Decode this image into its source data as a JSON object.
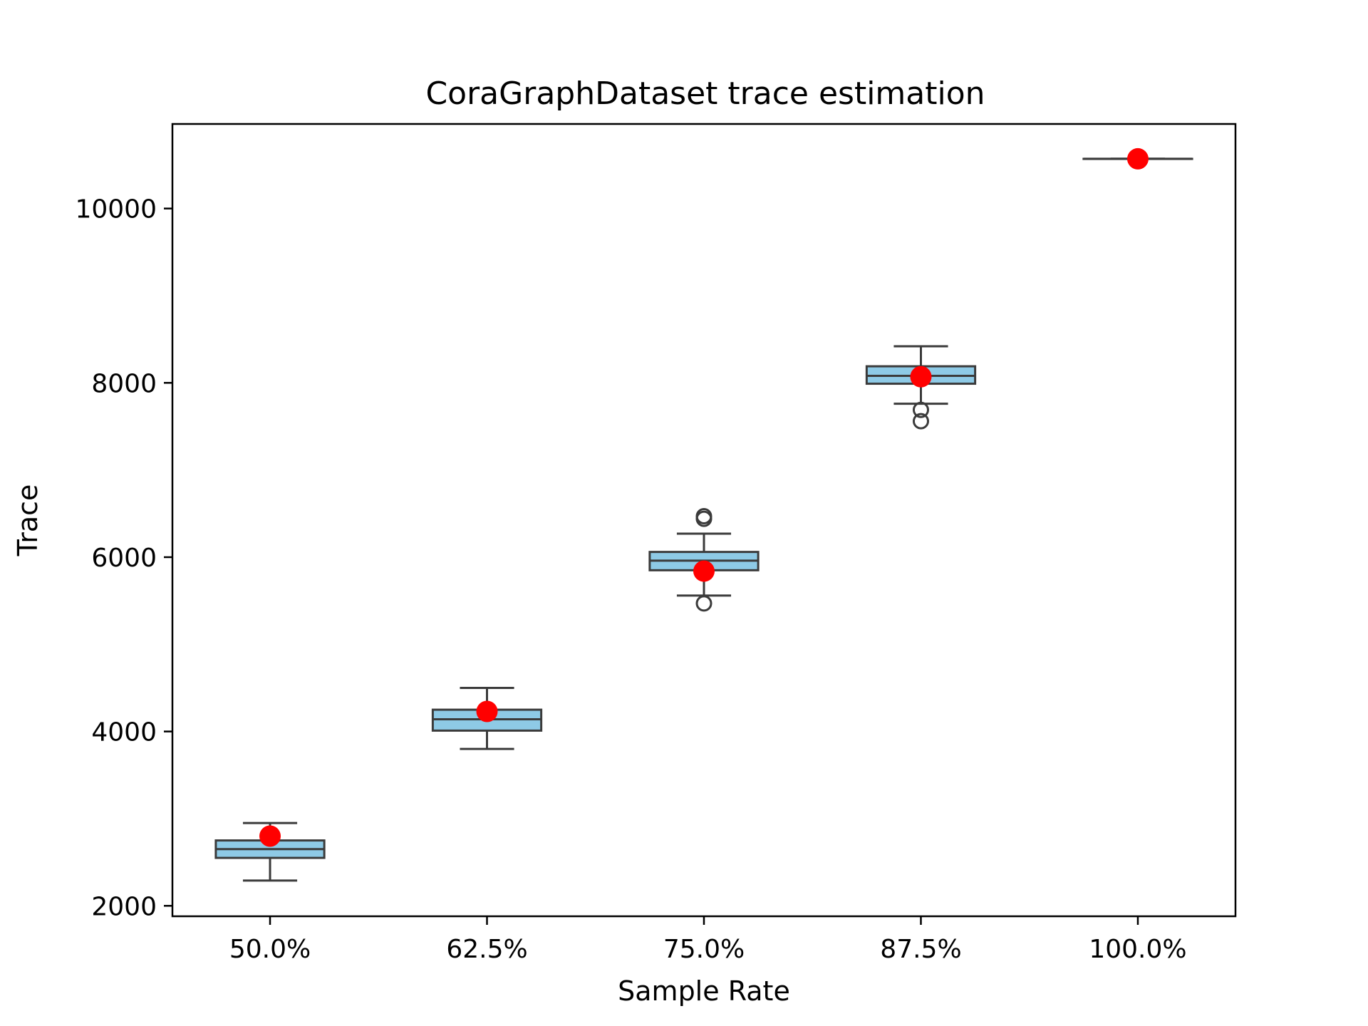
{
  "chart_data": {
    "type": "box",
    "title": "CoraGraphDataset trace estimation",
    "xlabel": "Sample Rate",
    "ylabel": "Trace",
    "categories": [
      "50.0%",
      "62.5%",
      "75.0%",
      "87.5%",
      "100.0%"
    ],
    "y_ticks": [
      2000,
      4000,
      6000,
      8000,
      10000
    ],
    "ylim": [
      1880,
      10970
    ],
    "grid": false,
    "box_color": "#8ecae6",
    "marker_color": "#ff0000",
    "boxes": [
      {
        "whisker_low": 2290,
        "q1": 2550,
        "median": 2650,
        "q3": 2750,
        "whisker_high": 2950,
        "outliers": []
      },
      {
        "whisker_low": 3800,
        "q1": 4010,
        "median": 4140,
        "q3": 4250,
        "whisker_high": 4500,
        "outliers": []
      },
      {
        "whisker_low": 5560,
        "q1": 5850,
        "median": 5960,
        "q3": 6060,
        "whisker_high": 6270,
        "outliers": [
          5470,
          6440,
          6470
        ]
      },
      {
        "whisker_low": 7760,
        "q1": 7990,
        "median": 8080,
        "q3": 8190,
        "whisker_high": 8420,
        "outliers": [
          7560,
          7690
        ]
      },
      {
        "whisker_low": 10570,
        "q1": 10570,
        "median": 10570,
        "q3": 10570,
        "whisker_high": 10570,
        "outliers": []
      }
    ],
    "markers": [
      2800,
      4230,
      5840,
      8070,
      10570
    ]
  }
}
